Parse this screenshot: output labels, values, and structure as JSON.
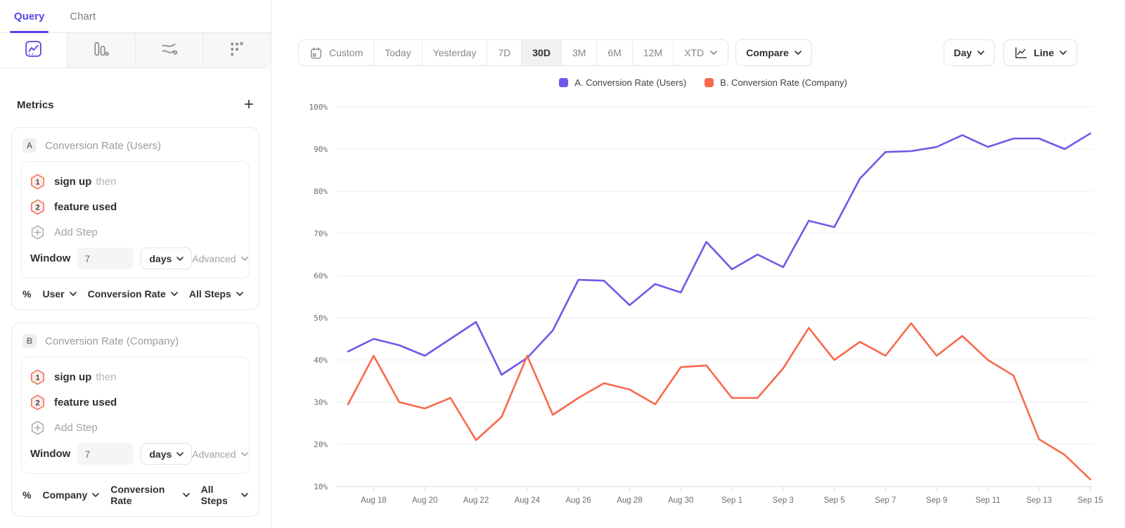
{
  "theme": {
    "accent": "#5546E6",
    "seriesA": "#7058E8",
    "seriesB": "#F8694D",
    "stepBorder": "#EE6C53",
    "stepBg": "#FCEBE7"
  },
  "sidebar": {
    "tabs": [
      {
        "label": "Query"
      },
      {
        "label": "Chart"
      }
    ],
    "icon_tabs": [
      {
        "name": "insights-chart"
      },
      {
        "name": "funnel-bars"
      },
      {
        "name": "journeys-flow"
      },
      {
        "name": "retention-dots"
      }
    ],
    "metrics": {
      "title": "Metrics",
      "add_label": "+",
      "cards": [
        {
          "badge": "A",
          "title": "Conversion Rate (Users)",
          "steps": [
            {
              "num": "1",
              "event": "sign up",
              "suffix": "then"
            },
            {
              "num": "2",
              "event": "feature used",
              "suffix": ""
            }
          ],
          "add_step_label": "Add Step",
          "window": {
            "label": "Window",
            "value": "7",
            "unit": "days",
            "advanced_label": "Advanced"
          },
          "footer": {
            "prefix": "%",
            "entity": "User",
            "measure": "Conversion Rate",
            "scope": "All Steps"
          }
        },
        {
          "badge": "B",
          "title": "Conversion Rate (Company)",
          "steps": [
            {
              "num": "1",
              "event": "sign up",
              "suffix": "then"
            },
            {
              "num": "2",
              "event": "feature used",
              "suffix": ""
            }
          ],
          "add_step_label": "Add Step",
          "window": {
            "label": "Window",
            "value": "7",
            "unit": "days",
            "advanced_label": "Advanced"
          },
          "footer": {
            "prefix": "%",
            "entity": "Company",
            "measure": "Conversion Rate",
            "scope": "All Steps"
          }
        }
      ]
    }
  },
  "toolbar": {
    "date_ranges": [
      {
        "label": "Custom",
        "icon": "calendar"
      },
      {
        "label": "Today"
      },
      {
        "label": "Yesterday"
      },
      {
        "label": "7D"
      },
      {
        "label": "30D",
        "active": true
      },
      {
        "label": "3M"
      },
      {
        "label": "6M"
      },
      {
        "label": "12M"
      },
      {
        "label": "XTD",
        "chevron": true
      }
    ],
    "compare_label": "Compare",
    "granularity_label": "Day",
    "chart_type_label": "Line"
  },
  "chart_data": {
    "type": "line",
    "title": "",
    "xlabel": "",
    "ylabel": "",
    "ylim": [
      10,
      100
    ],
    "yticks": [
      100,
      90,
      80,
      70,
      60,
      50,
      40,
      30,
      20,
      10
    ],
    "ytick_suffix": "%",
    "grid": true,
    "legend_position": "top",
    "x": [
      "Aug 17",
      "Aug 18",
      "Aug 19",
      "Aug 20",
      "Aug 21",
      "Aug 22",
      "Aug 23",
      "Aug 24",
      "Aug 25",
      "Aug 26",
      "Aug 27",
      "Aug 28",
      "Aug 29",
      "Aug 30",
      "Aug 31",
      "Sep 1",
      "Sep 2",
      "Sep 3",
      "Sep 4",
      "Sep 5",
      "Sep 6",
      "Sep 7",
      "Sep 8",
      "Sep 9",
      "Sep 10",
      "Sep 11",
      "Sep 12",
      "Sep 13",
      "Sep 14",
      "Sep 15"
    ],
    "x_tick_labels": [
      "Aug 18",
      "Aug 20",
      "Aug 22",
      "Aug 24",
      "Aug 26",
      "Aug 28",
      "Aug 30",
      "Sep 1",
      "Sep 3",
      "Sep 5",
      "Sep 7",
      "Sep 9",
      "Sep 11",
      "Sep 13",
      "Sep 15"
    ],
    "series": [
      {
        "name": "A. Conversion Rate (Users)",
        "color": "#7058E8",
        "values": [
          42,
          45,
          43.5,
          41,
          45,
          49,
          36.5,
          40.5,
          47,
          59,
          58.8,
          53,
          58,
          56,
          68,
          61.5,
          65,
          62,
          73,
          71.5,
          83,
          89.3,
          89.5,
          90.5,
          93.3,
          90.5,
          92.5,
          92.5,
          90,
          93.7
        ]
      },
      {
        "name": "B. Conversion Rate (Company)",
        "color": "#F8694D",
        "values": [
          29.5,
          41,
          30,
          28.5,
          31,
          21,
          26.5,
          41,
          27,
          31,
          34.5,
          33,
          29.5,
          38.3,
          38.7,
          31,
          31,
          38,
          47.6,
          40,
          44.3,
          41,
          48.7,
          41,
          45.7,
          40,
          36.3,
          21.2,
          17.5,
          11.7
        ]
      }
    ]
  }
}
